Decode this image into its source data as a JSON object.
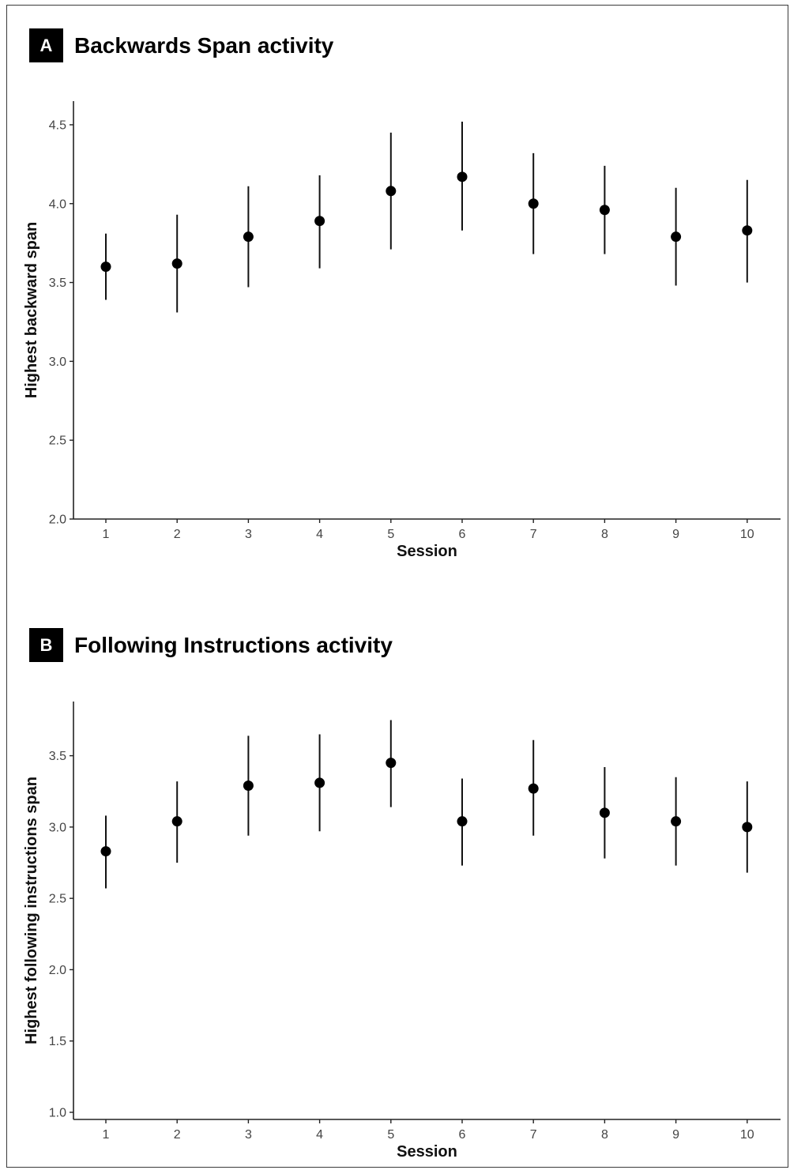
{
  "chart_data": [
    {
      "panel_label": "A",
      "title": "Backwards Span activity",
      "type": "scatter",
      "xlabel": "Session",
      "ylabel": "Highest backward span",
      "categories": [
        "1",
        "2",
        "3",
        "4",
        "5",
        "6",
        "7",
        "8",
        "9",
        "10"
      ],
      "y_ticks": [
        "2.0",
        "2.5",
        "3.0",
        "3.5",
        "4.0",
        "4.5"
      ],
      "ylim": [
        2.0,
        4.65
      ],
      "grid": false,
      "series": [
        {
          "values": [
            3.6,
            3.62,
            3.79,
            3.89,
            4.08,
            4.17,
            4.0,
            3.96,
            3.79,
            3.83
          ],
          "lower": [
            3.39,
            3.31,
            3.47,
            3.59,
            3.71,
            3.83,
            3.68,
            3.68,
            3.48,
            3.5
          ],
          "upper": [
            3.81,
            3.93,
            4.11,
            4.18,
            4.45,
            4.52,
            4.32,
            4.24,
            4.1,
            4.15
          ]
        }
      ]
    },
    {
      "panel_label": "B",
      "title": "Following Instructions activity",
      "type": "scatter",
      "xlabel": "Session",
      "ylabel": "Highest following instructions span",
      "categories": [
        "1",
        "2",
        "3",
        "4",
        "5",
        "6",
        "7",
        "8",
        "9",
        "10"
      ],
      "y_ticks": [
        "1.0",
        "1.5",
        "2.0",
        "2.5",
        "3.0",
        "3.5"
      ],
      "ylim": [
        0.95,
        3.88
      ],
      "grid": false,
      "series": [
        {
          "values": [
            2.83,
            3.04,
            3.29,
            3.31,
            3.45,
            3.04,
            3.27,
            3.1,
            3.04,
            3.0
          ],
          "lower": [
            2.57,
            2.75,
            2.94,
            2.97,
            3.14,
            2.73,
            2.94,
            2.78,
            2.73,
            2.68
          ],
          "upper": [
            3.08,
            3.32,
            3.64,
            3.65,
            3.75,
            3.34,
            3.61,
            3.42,
            3.35,
            3.32
          ]
        }
      ]
    }
  ]
}
